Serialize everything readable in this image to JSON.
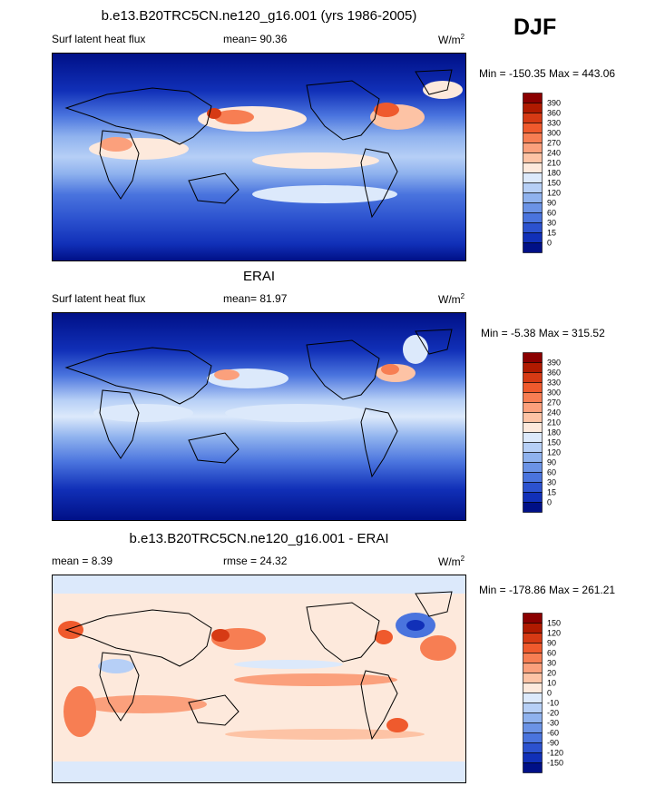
{
  "season": "DJF",
  "panels": [
    {
      "title": "b.e13.B20TRC5CN.ne120_g16.001 (yrs 1986-2005)",
      "left_label": "Surf latent heat flux",
      "stat_label": "mean=  90.36",
      "units": "W/m",
      "units_sup": "2",
      "minmax": "Min = -150.35 Max = 443.06",
      "palette": "absolute"
    },
    {
      "title": "ERAI",
      "left_label": "Surf latent heat flux",
      "stat_label": "mean=  81.97",
      "units": "W/m",
      "units_sup": "2",
      "minmax": "Min =  -5.38 Max = 315.52",
      "palette": "absolute"
    },
    {
      "title": "b.e13.B20TRC5CN.ne120_g16.001 - ERAI",
      "left_label": "mean =   8.39",
      "stat_label": "rmse =  24.32",
      "units": "W/m",
      "units_sup": "2",
      "minmax": "Min = -178.86 Max = 261.21",
      "palette": "difference"
    }
  ],
  "colorbars": {
    "absolute": {
      "labels": [
        "390",
        "360",
        "330",
        "300",
        "270",
        "240",
        "210",
        "180",
        "150",
        "120",
        "90",
        "60",
        "30",
        "15",
        "0"
      ],
      "colors": [
        "#8b0000",
        "#b01a00",
        "#d63a14",
        "#ef5a2d",
        "#f77e53",
        "#fba07c",
        "#fdc3a5",
        "#fde9dc",
        "#dce9fb",
        "#b6cff6",
        "#8fb2ee",
        "#6b93e6",
        "#4a74de",
        "#2c52cf",
        "#1130b8",
        "#001087"
      ]
    },
    "difference": {
      "labels": [
        "150",
        "120",
        "90",
        "60",
        "30",
        "20",
        "10",
        "0",
        "-10",
        "-20",
        "-30",
        "-60",
        "-90",
        "-120",
        "-150"
      ],
      "colors": [
        "#8b0000",
        "#b01a00",
        "#d63a14",
        "#ef5a2d",
        "#f77e53",
        "#fba07c",
        "#fdc3a5",
        "#fde9dc",
        "#dce9fb",
        "#b6cff6",
        "#8fb2ee",
        "#6b93e6",
        "#4a74de",
        "#2c52cf",
        "#1130b8",
        "#001087"
      ]
    }
  },
  "chart_data": [
    {
      "type": "heatmap",
      "title": "b.e13.B20TRC5CN.ne120_g16.001 (yrs 1986-2005)",
      "season": "DJF",
      "variable": "Surf latent heat flux",
      "units": "W/m2",
      "mean": 90.36,
      "min": -150.35,
      "max": 443.06,
      "contour_levels": [
        0,
        15,
        30,
        60,
        90,
        120,
        150,
        180,
        210,
        240,
        270,
        300,
        330,
        360,
        390
      ]
    },
    {
      "type": "heatmap",
      "title": "ERAI",
      "season": "DJF",
      "variable": "Surf latent heat flux",
      "units": "W/m2",
      "mean": 81.97,
      "min": -5.38,
      "max": 315.52,
      "contour_levels": [
        0,
        15,
        30,
        60,
        90,
        120,
        150,
        180,
        210,
        240,
        270,
        300,
        330,
        360,
        390
      ]
    },
    {
      "type": "heatmap",
      "title": "b.e13.B20TRC5CN.ne120_g16.001 - ERAI",
      "season": "DJF",
      "units": "W/m2",
      "mean": 8.39,
      "rmse": 24.32,
      "min": -178.86,
      "max": 261.21,
      "contour_levels": [
        -150,
        -120,
        -90,
        -60,
        -30,
        -20,
        -10,
        0,
        10,
        20,
        30,
        60,
        90,
        120,
        150
      ]
    }
  ]
}
